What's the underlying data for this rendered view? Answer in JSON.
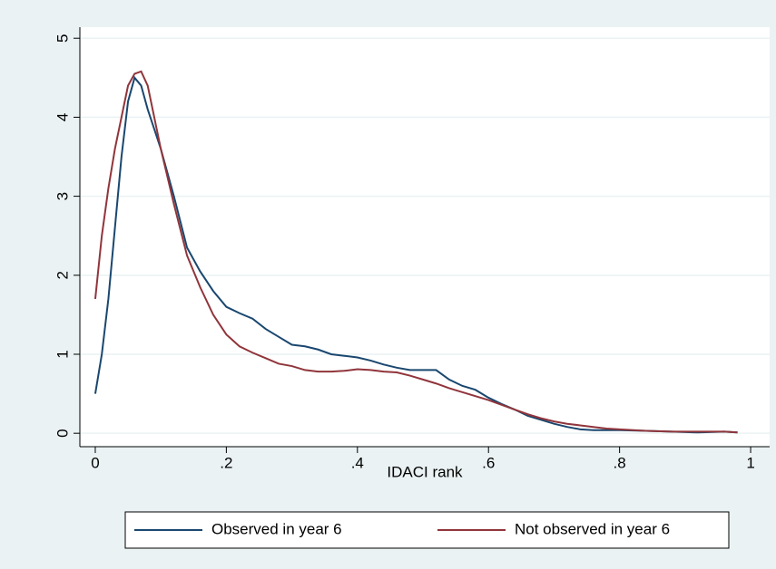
{
  "chart_data": {
    "type": "line",
    "x_label": "IDACI rank",
    "x": [
      0,
      0.01,
      0.02,
      0.03,
      0.04,
      0.05,
      0.06,
      0.07,
      0.08,
      0.09,
      0.1,
      0.12,
      0.14,
      0.16,
      0.18,
      0.2,
      0.22,
      0.24,
      0.26,
      0.28,
      0.3,
      0.32,
      0.34,
      0.36,
      0.38,
      0.4,
      0.42,
      0.44,
      0.46,
      0.48,
      0.5,
      0.52,
      0.54,
      0.56,
      0.58,
      0.6,
      0.62,
      0.64,
      0.66,
      0.68,
      0.7,
      0.72,
      0.74,
      0.76,
      0.78,
      0.8,
      0.84,
      0.88,
      0.92,
      0.96,
      0.98
    ],
    "series": [
      {
        "name": "Observed in year 6",
        "color": "#1a476f",
        "values": [
          0.5,
          1.0,
          1.7,
          2.6,
          3.5,
          4.2,
          4.5,
          4.4,
          4.1,
          3.85,
          3.6,
          3.0,
          2.35,
          2.05,
          1.8,
          1.6,
          1.52,
          1.45,
          1.32,
          1.22,
          1.12,
          1.1,
          1.06,
          1.0,
          0.98,
          0.96,
          0.92,
          0.87,
          0.83,
          0.8,
          0.8,
          0.8,
          0.68,
          0.6,
          0.55,
          0.45,
          0.37,
          0.3,
          0.22,
          0.17,
          0.12,
          0.08,
          0.05,
          0.04,
          0.04,
          0.04,
          0.03,
          0.02,
          0.01,
          0.02,
          0.01
        ]
      },
      {
        "name": "Not observed in year 6",
        "color": "#90353b",
        "values": [
          1.7,
          2.5,
          3.1,
          3.6,
          4.0,
          4.4,
          4.55,
          4.58,
          4.4,
          4.0,
          3.6,
          2.9,
          2.25,
          1.85,
          1.5,
          1.25,
          1.1,
          1.02,
          0.95,
          0.88,
          0.85,
          0.8,
          0.78,
          0.78,
          0.79,
          0.81,
          0.8,
          0.78,
          0.77,
          0.73,
          0.68,
          0.63,
          0.57,
          0.52,
          0.47,
          0.42,
          0.36,
          0.3,
          0.24,
          0.19,
          0.15,
          0.12,
          0.1,
          0.08,
          0.06,
          0.05,
          0.03,
          0.02,
          0.02,
          0.02,
          0.01
        ]
      }
    ],
    "xlim": [
      -0.0235,
      1.029
    ],
    "xticks": [
      0,
      {
        "value": 0.2,
        "label": ".2"
      },
      {
        "value": 0.4,
        "label": ".4"
      },
      {
        "value": 0.6,
        "label": ".6"
      },
      {
        "value": 0.8,
        "label": ".8"
      },
      1
    ],
    "ylim": [
      -0.17,
      5.14
    ],
    "yticks": [
      0,
      1,
      2,
      3,
      4,
      5
    ],
    "grid": true,
    "legend": "bottom"
  }
}
